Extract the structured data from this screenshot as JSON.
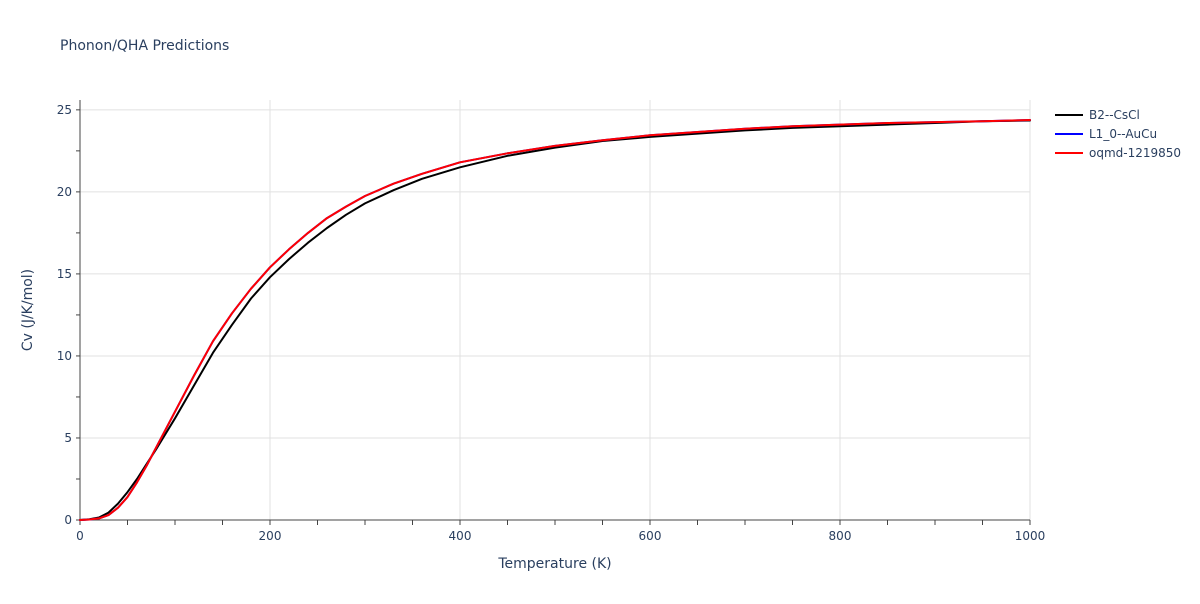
{
  "chart_data": {
    "type": "line",
    "title": "Phonon/QHA Predictions",
    "xlabel": "Temperature (K)",
    "ylabel": "Cv (J/K/mol)",
    "xlim": [
      0,
      1000
    ],
    "ylim": [
      0,
      25.6
    ],
    "x_ticks": [
      0,
      200,
      400,
      600,
      800,
      1000
    ],
    "y_ticks": [
      0,
      5,
      10,
      15,
      20,
      25
    ],
    "x_tick_labels": [
      "0",
      "200",
      "400",
      "600",
      "800",
      "1000"
    ],
    "y_tick_labels": [
      "0",
      "5",
      "10",
      "15",
      "20",
      "25"
    ],
    "grid": true,
    "legend_position": "top-right",
    "series": [
      {
        "name": "B2--CsCl",
        "color": "#000000",
        "x": [
          0,
          10,
          20,
          30,
          40,
          50,
          60,
          70,
          80,
          100,
          120,
          140,
          160,
          180,
          200,
          220,
          240,
          260,
          280,
          300,
          330,
          360,
          400,
          450,
          500,
          550,
          600,
          650,
          700,
          750,
          800,
          850,
          900,
          950,
          1000
        ],
        "y": [
          0,
          0.05,
          0.15,
          0.45,
          1.0,
          1.7,
          2.5,
          3.4,
          4.3,
          6.2,
          8.2,
          10.2,
          11.9,
          13.5,
          14.8,
          15.9,
          16.9,
          17.8,
          18.6,
          19.3,
          20.1,
          20.8,
          21.5,
          22.2,
          22.7,
          23.1,
          23.35,
          23.55,
          23.75,
          23.9,
          24.0,
          24.1,
          24.2,
          24.3,
          24.35
        ]
      },
      {
        "name": "L1_0--AuCu",
        "color": "#0000ff",
        "x": [
          0,
          10,
          20,
          30,
          40,
          50,
          60,
          70,
          80,
          100,
          120,
          140,
          160,
          180,
          200,
          220,
          240,
          260,
          280,
          300,
          330,
          360,
          400,
          450,
          500,
          550,
          600,
          650,
          700,
          750,
          800,
          850,
          900,
          950,
          1000
        ],
        "y": [
          0,
          0.03,
          0.1,
          0.3,
          0.75,
          1.4,
          2.3,
          3.3,
          4.4,
          6.6,
          8.8,
          10.9,
          12.6,
          14.1,
          15.4,
          16.5,
          17.5,
          18.4,
          19.1,
          19.75,
          20.5,
          21.1,
          21.8,
          22.35,
          22.8,
          23.15,
          23.45,
          23.65,
          23.85,
          24.0,
          24.1,
          24.2,
          24.25,
          24.3,
          24.38
        ]
      },
      {
        "name": "oqmd-1219850",
        "color": "#ff0000",
        "x": [
          0,
          10,
          20,
          30,
          40,
          50,
          60,
          70,
          80,
          100,
          120,
          140,
          160,
          180,
          200,
          220,
          240,
          260,
          280,
          300,
          330,
          360,
          400,
          450,
          500,
          550,
          600,
          650,
          700,
          750,
          800,
          850,
          900,
          950,
          1000
        ],
        "y": [
          0,
          0.03,
          0.1,
          0.3,
          0.75,
          1.4,
          2.3,
          3.3,
          4.4,
          6.6,
          8.8,
          10.9,
          12.6,
          14.1,
          15.4,
          16.5,
          17.5,
          18.4,
          19.1,
          19.75,
          20.5,
          21.1,
          21.8,
          22.35,
          22.8,
          23.15,
          23.45,
          23.65,
          23.85,
          24.0,
          24.1,
          24.2,
          24.25,
          24.3,
          24.38
        ]
      }
    ]
  }
}
